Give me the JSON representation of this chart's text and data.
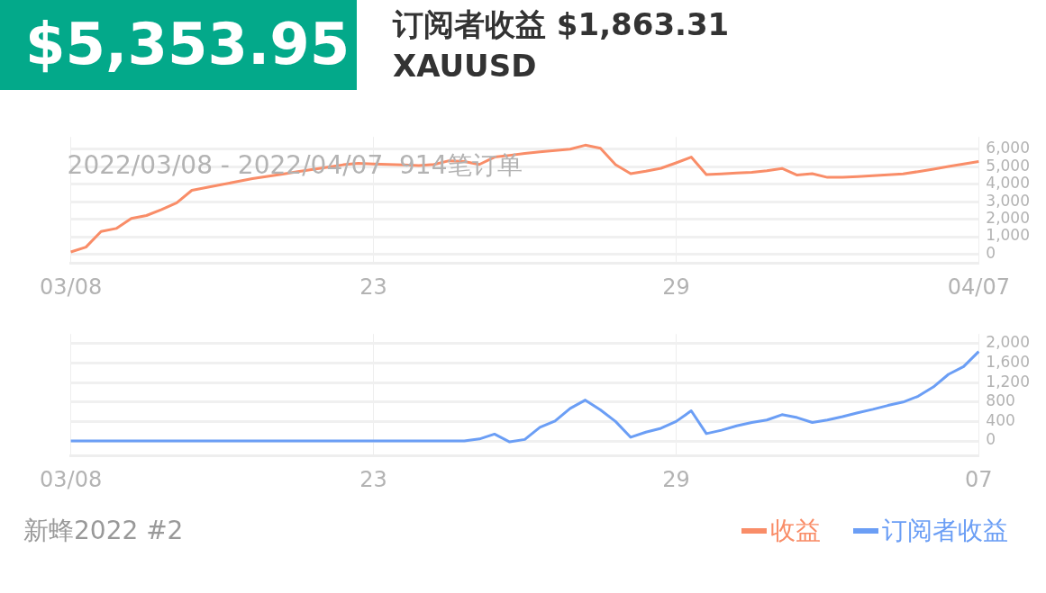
{
  "chart_data": [
    {
      "type": "line",
      "annotations": [
        "$5,353.95",
        "订阅者收益 $1,863.31",
        "XAUUSD",
        "2022/03/08 - 2022/04/07  914笔订单"
      ],
      "categories": [
        "03/08",
        null,
        null,
        null,
        null,
        null,
        null,
        null,
        null,
        null,
        null,
        null,
        null,
        null,
        null,
        null,
        null,
        null,
        null,
        null,
        "23",
        null,
        null,
        null,
        null,
        null,
        null,
        null,
        null,
        null,
        null,
        null,
        null,
        null,
        null,
        null,
        null,
        null,
        null,
        null,
        "29",
        null,
        null,
        null,
        null,
        null,
        null,
        null,
        null,
        null,
        null,
        null,
        null,
        null,
        null,
        null,
        null,
        null,
        null,
        null,
        "04/07"
      ],
      "ylim": [
        -500,
        6700
      ],
      "yticks": [
        0,
        {
          "value": 1000,
          "label": "1,000"
        },
        {
          "value": 2000,
          "label": "2,000"
        },
        {
          "value": 3000,
          "label": "3,000"
        },
        {
          "value": 4000,
          "label": "4,000"
        },
        {
          "value": 5000,
          "label": "5,000"
        },
        {
          "value": 6000,
          "label": "6,000"
        }
      ],
      "grid": true,
      "legend": "bottom right",
      "marker": "none",
      "line_style": "solid",
      "series": [
        {
          "name": "收益",
          "color": "#f98d68",
          "values": [
            130,
            402,
            1300,
            1470,
            2040,
            2210,
            2550,
            2940,
            3650,
            3820,
            3980,
            4150,
            4320,
            4450,
            4580,
            4720,
            4850,
            4980,
            5110,
            5190,
            5160,
            5130,
            5100,
            5070,
            5130,
            5340,
            5300,
            5130,
            5550,
            5650,
            5760,
            5850,
            5920,
            6000,
            6230,
            6050,
            5120,
            4600,
            4740,
            4910,
            5220,
            5550,
            4550,
            4590,
            4640,
            4680,
            4770,
            4900,
            4520,
            4600,
            4390,
            4390,
            4440,
            4490,
            4540,
            4590,
            4720,
            4860,
            5010,
            5150,
            5300
          ]
        }
      ]
    },
    {
      "type": "line",
      "annotations": [
        "新蜂2022 #2"
      ],
      "categories": [
        "03/08",
        null,
        null,
        null,
        null,
        null,
        null,
        null,
        null,
        null,
        null,
        null,
        null,
        null,
        null,
        null,
        null,
        null,
        null,
        null,
        "23",
        null,
        null,
        null,
        null,
        null,
        null,
        null,
        null,
        null,
        null,
        null,
        null,
        null,
        null,
        null,
        null,
        null,
        null,
        null,
        "29",
        null,
        null,
        null,
        null,
        null,
        null,
        null,
        null,
        null,
        null,
        null,
        null,
        null,
        null,
        null,
        null,
        null,
        null,
        null,
        "07"
      ],
      "ylim": [
        -300,
        2200
      ],
      "yticks": [
        0,
        400,
        800,
        {
          "value": 1200,
          "label": "1,200"
        },
        {
          "value": 1600,
          "label": "1,600"
        },
        {
          "value": 2000,
          "label": "2,000"
        }
      ],
      "grid": true,
      "legend": "bottom right",
      "marker": "none",
      "line_style": "solid",
      "series": [
        {
          "name": "订阅者收益",
          "color": "#6b9ef5",
          "values": [
            0,
            0,
            0,
            0,
            0,
            0,
            0,
            0,
            0,
            0,
            0,
            0,
            0,
            0,
            0,
            0,
            0,
            0,
            0,
            0,
            0,
            0,
            0,
            0,
            0,
            0,
            0,
            40,
            140,
            -20,
            30,
            280,
            410,
            670,
            840,
            640,
            400,
            75,
            180,
            260,
            400,
            620,
            150,
            220,
            310,
            380,
            430,
            540,
            480,
            380,
            430,
            500,
            580,
            650,
            730,
            800,
            920,
            1110,
            1370,
            1530,
            1840
          ]
        }
      ]
    }
  ]
}
